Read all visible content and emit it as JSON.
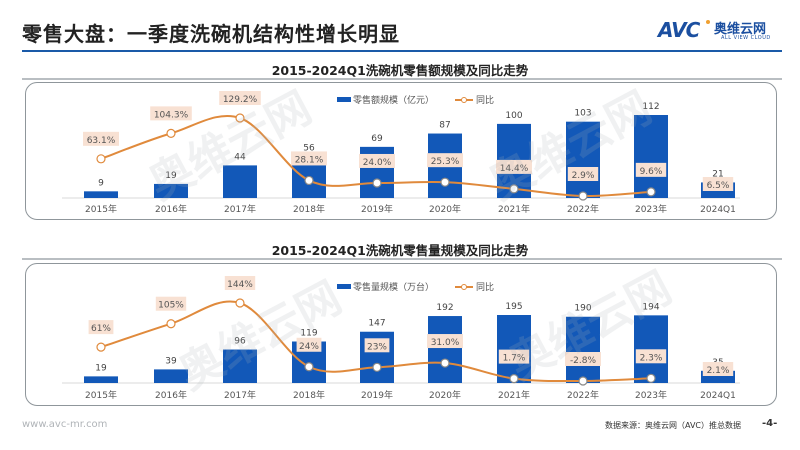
{
  "header": {
    "title": "零售大盘：一季度洗碗机结构性增长明显",
    "logo": {
      "brand": "AVC",
      "name_cn": "奥维云网",
      "name_en": "ALL VIEW CLOUD"
    }
  },
  "colors": {
    "bar": "#1258b8",
    "line": "#e08a3c",
    "line_recent": "#8a8a8a",
    "label_bg": "#f8e1d3",
    "title_rule": "#1a5aa8"
  },
  "chart_data": [
    {
      "type": "bar",
      "title": "2015-2024Q1洗碗机零售额规模及同比走势",
      "categories": [
        "2015年",
        "2016年",
        "2017年",
        "2018年",
        "2019年",
        "2020年",
        "2021年",
        "2022年",
        "2023年",
        "2024Q1"
      ],
      "legend": {
        "position": "top-center",
        "bar_label": "零售额规模（亿元）",
        "line_label": "同比"
      },
      "series": [
        {
          "name": "零售额规模（亿元）",
          "kind": "bar",
          "values": [
            9,
            19,
            44,
            56,
            69,
            87,
            100,
            103,
            112,
            21
          ]
        },
        {
          "name": "同比",
          "kind": "line",
          "values": [
            63.1,
            104.3,
            129.2,
            28.1,
            24.0,
            25.3,
            14.4,
            2.9,
            9.6,
            6.5
          ],
          "labels": [
            "63.1%",
            "104.3%",
            "129.2%",
            "28.1%",
            "24.0%",
            "25.3%",
            "14.4%",
            "2.9%",
            "9.6%",
            "6.5%"
          ]
        }
      ],
      "ylim": [
        0,
        120
      ]
    },
    {
      "type": "bar",
      "title": "2015-2024Q1洗碗机零售量规模及同比走势",
      "categories": [
        "2015年",
        "2016年",
        "2017年",
        "2018年",
        "2019年",
        "2020年",
        "2021年",
        "2022年",
        "2023年",
        "2024Q1"
      ],
      "legend": {
        "position": "top-center",
        "bar_label": "零售量规模（万台）",
        "line_label": "同比"
      },
      "series": [
        {
          "name": "零售量规模（万台）",
          "kind": "bar",
          "values": [
            19,
            39,
            96,
            119,
            147,
            192,
            195,
            190,
            194,
            35
          ]
        },
        {
          "name": "同比",
          "kind": "line",
          "values": [
            61,
            105,
            144,
            24,
            23,
            31.0,
            1.7,
            -2.8,
            2.3,
            2.1
          ],
          "labels": [
            "61%",
            "105%",
            "144%",
            "24%",
            "23%",
            "31.0%",
            "1.7%",
            "-2.8%",
            "2.3%",
            "2.1%"
          ]
        }
      ],
      "ylim": [
        0,
        210
      ]
    }
  ],
  "watermark": "奥维云网",
  "footer": {
    "url": "www.avc-mr.com",
    "source": "数据来源：奥维云网（AVC）推总数据",
    "page": "-4-"
  }
}
